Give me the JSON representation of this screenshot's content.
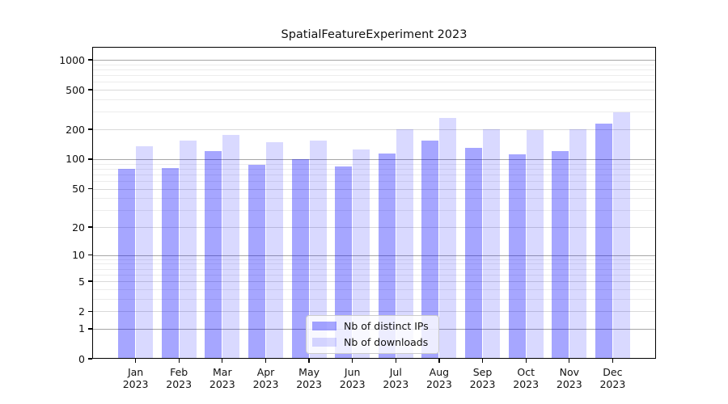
{
  "chart_data": {
    "type": "bar",
    "title": "SpatialFeatureExperiment 2023",
    "x": {
      "months": [
        "Jan",
        "Feb",
        "Mar",
        "Apr",
        "May",
        "Jun",
        "Jul",
        "Aug",
        "Sep",
        "Oct",
        "Nov",
        "Dec"
      ],
      "year": "2023"
    },
    "categories": [
      "Jan 2023",
      "Feb 2023",
      "Mar 2023",
      "Apr 2023",
      "May 2023",
      "Jun 2023",
      "Jul 2023",
      "Aug 2023",
      "Sep 2023",
      "Oct 2023",
      "Nov 2023",
      "Dec 2023"
    ],
    "series": [
      {
        "name": "Nb of distinct IPs",
        "color": "rgba(0,0,255,0.35)",
        "values": [
          80,
          81,
          120,
          88,
          99,
          84,
          114,
          154,
          130,
          112,
          121,
          228
        ]
      },
      {
        "name": "Nb of downloads",
        "color": "rgba(0,0,255,0.15)",
        "values": [
          134,
          154,
          174,
          148,
          155,
          125,
          199,
          260,
          199,
          196,
          202,
          295
        ]
      }
    ],
    "y_axis": {
      "scale": "log1p",
      "ticks": [
        0,
        1,
        2,
        5,
        10,
        20,
        50,
        100,
        200,
        500,
        1000
      ],
      "major_grid_values": [
        1,
        10,
        100,
        1000
      ],
      "mid_grid_values": [
        2,
        5,
        20,
        50,
        200,
        500
      ],
      "minor_grid_values": [
        3,
        4,
        6,
        7,
        8,
        9,
        30,
        40,
        60,
        70,
        80,
        90,
        300,
        400,
        600,
        700,
        800,
        900
      ],
      "min": 0,
      "max": 1350
    },
    "grid": true,
    "legend_position": "bottom-center",
    "colors": {
      "major_grid": "#a6a6a6",
      "mid_grid": "#d9d9d9",
      "minor_grid": "#ececec",
      "spine": "#000000",
      "text": "#111111",
      "background": "#ffffff"
    }
  }
}
